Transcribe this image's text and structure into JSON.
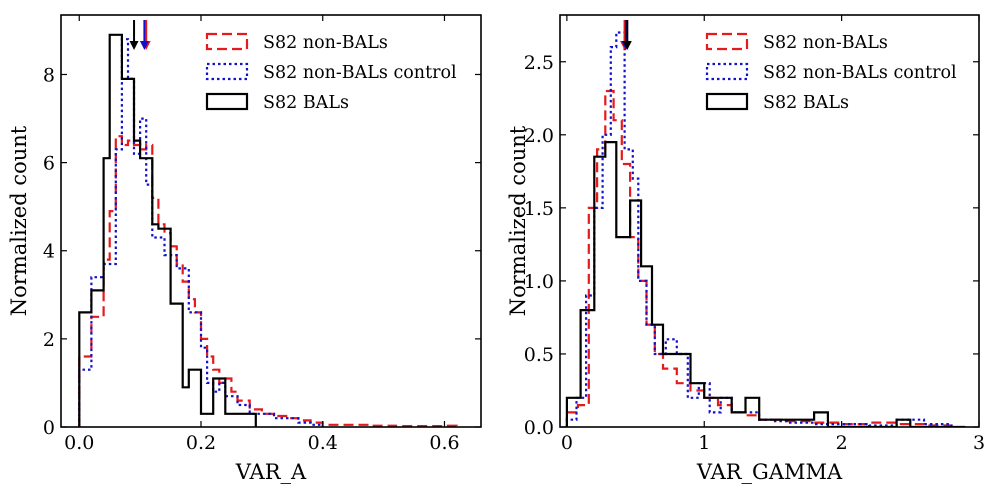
{
  "chart_data": [
    {
      "type": "histogram",
      "xlabel": "VAR_A",
      "ylabel": "Normalized count",
      "xlim": [
        -0.03,
        0.66
      ],
      "ylim": [
        0,
        9.35
      ],
      "xticks": [
        0.0,
        0.2,
        0.4,
        0.6
      ],
      "xtick_labels": [
        "0.0",
        "0.2",
        "0.4",
        "0.6"
      ],
      "yticks": [
        0,
        2,
        4,
        6,
        8
      ],
      "ytick_labels": [
        "0",
        "2",
        "4",
        "6",
        "8"
      ],
      "legend_position": "top-right",
      "series": [
        {
          "name": "S82 non-BALs",
          "color": "#e41a1c",
          "style": "dashed",
          "edges": [
            0.0,
            0.02,
            0.04,
            0.05,
            0.06,
            0.07,
            0.08,
            0.09,
            0.1,
            0.11,
            0.12,
            0.13,
            0.14,
            0.15,
            0.16,
            0.17,
            0.18,
            0.19,
            0.2,
            0.21,
            0.22,
            0.23,
            0.24,
            0.25,
            0.26,
            0.28,
            0.3,
            0.32,
            0.34,
            0.36,
            0.38,
            0.4,
            0.44,
            0.48,
            0.52,
            0.56,
            0.6,
            0.62
          ],
          "values": [
            1.6,
            2.5,
            3.8,
            4.9,
            6.6,
            6.4,
            6.5,
            6.4,
            6.3,
            6.4,
            5.2,
            4.6,
            4.4,
            4.1,
            3.7,
            3.3,
            2.9,
            2.6,
            2.0,
            1.6,
            1.3,
            1.0,
            1.1,
            0.8,
            0.6,
            0.4,
            0.3,
            0.25,
            0.2,
            0.15,
            0.1,
            0.05,
            0.05,
            0.03,
            0.02,
            0.02,
            0.03
          ]
        },
        {
          "name": "S82 non-BALs control",
          "color": "#1111cc",
          "style": "dotted",
          "edges": [
            0.0,
            0.02,
            0.04,
            0.06,
            0.07,
            0.08,
            0.09,
            0.1,
            0.11,
            0.12,
            0.14,
            0.16,
            0.17,
            0.18,
            0.2,
            0.21,
            0.22,
            0.23,
            0.24,
            0.26,
            0.28,
            0.3,
            0.32,
            0.34,
            0.36,
            0.38,
            0.4
          ],
          "values": [
            1.3,
            3.4,
            3.7,
            6.3,
            8.8,
            7.9,
            6.2,
            7.0,
            5.5,
            4.3,
            3.9,
            3.6,
            3.6,
            2.6,
            1.8,
            1.0,
            0.8,
            1.0,
            0.7,
            0.5,
            0.3,
            0.3,
            0.2,
            0.2,
            0.1,
            0.05
          ]
        },
        {
          "name": "S82 BALs",
          "color": "#000000",
          "style": "solid",
          "edges": [
            0.0,
            0.02,
            0.04,
            0.05,
            0.06,
            0.07,
            0.08,
            0.09,
            0.1,
            0.11,
            0.12,
            0.13,
            0.14,
            0.15,
            0.16,
            0.17,
            0.18,
            0.19,
            0.2,
            0.21,
            0.22,
            0.23,
            0.24,
            0.26,
            0.28,
            0.29
          ],
          "values": [
            2.6,
            3.1,
            6.1,
            8.9,
            8.9,
            7.9,
            7.9,
            6.5,
            6.1,
            6.1,
            4.6,
            4.5,
            4.5,
            2.8,
            2.8,
            0.9,
            1.3,
            1.3,
            0.3,
            0.3,
            1.1,
            1.1,
            0.3,
            0.3,
            0.3
          ]
        }
      ],
      "medians": [
        {
          "series": "S82 non-BALs",
          "x": 0.11,
          "color": "#e41a1c"
        },
        {
          "series": "S82 non-BALs control",
          "x": 0.107,
          "color": "#1111cc"
        },
        {
          "series": "S82 BALs",
          "x": 0.09,
          "color": "#000000"
        }
      ]
    },
    {
      "type": "histogram",
      "xlabel": "VAR_GAMMA",
      "ylabel": "Normalized count",
      "xlim": [
        -0.05,
        3.0
      ],
      "ylim": [
        0,
        2.82
      ],
      "xticks": [
        0,
        1,
        2,
        3
      ],
      "xtick_labels": [
        "0",
        "1",
        "2",
        "3"
      ],
      "yticks": [
        0.0,
        0.5,
        1.0,
        1.5,
        2.0,
        2.5
      ],
      "ytick_labels": [
        "0.0",
        "0.5",
        "1.0",
        "1.5",
        "2.0",
        "2.5"
      ],
      "legend_position": "top-right",
      "series": [
        {
          "name": "S82 non-BALs",
          "color": "#e41a1c",
          "style": "dashed",
          "edges": [
            0.0,
            0.08,
            0.16,
            0.22,
            0.28,
            0.34,
            0.4,
            0.46,
            0.52,
            0.58,
            0.64,
            0.7,
            0.8,
            0.9,
            1.0,
            1.1,
            1.2,
            1.3,
            1.4,
            1.5,
            1.6,
            1.8,
            2.0,
            2.2,
            2.4,
            2.6,
            2.8
          ],
          "values": [
            0.1,
            0.15,
            1.5,
            1.9,
            2.3,
            2.1,
            1.8,
            1.3,
            1.0,
            0.7,
            0.5,
            0.4,
            0.3,
            0.25,
            0.2,
            0.15,
            0.1,
            0.08,
            0.05,
            0.05,
            0.04,
            0.03,
            0.02,
            0.03,
            0.02,
            0.01
          ]
        },
        {
          "name": "S82 non-BALs control",
          "color": "#1111cc",
          "style": "dotted",
          "edges": [
            0.0,
            0.07,
            0.14,
            0.2,
            0.26,
            0.32,
            0.36,
            0.42,
            0.48,
            0.52,
            0.58,
            0.64,
            0.72,
            0.8,
            0.88,
            0.96,
            1.04,
            1.12,
            1.2,
            1.3,
            1.4,
            1.5,
            1.6,
            1.8,
            2.0,
            2.2,
            2.4,
            2.6,
            2.8
          ],
          "values": [
            0.05,
            0.2,
            0.9,
            1.5,
            2.0,
            2.6,
            2.7,
            1.9,
            1.7,
            1.0,
            0.7,
            0.5,
            0.6,
            0.5,
            0.2,
            0.3,
            0.1,
            0.2,
            0.1,
            0.1,
            0.05,
            0.04,
            0.03,
            0.02,
            0.02,
            0.01,
            0.05,
            0.02
          ]
        },
        {
          "name": "S82 BALs",
          "color": "#000000",
          "style": "solid",
          "edges": [
            0.0,
            0.1,
            0.2,
            0.28,
            0.36,
            0.46,
            0.54,
            0.62,
            0.7,
            0.8,
            0.9,
            1.0,
            1.1,
            1.2,
            1.3,
            1.4,
            1.5,
            1.6,
            1.7,
            1.8,
            1.9,
            2.0,
            2.4,
            2.5,
            2.6,
            2.9
          ],
          "values": [
            0.2,
            0.8,
            1.85,
            1.95,
            1.3,
            1.55,
            1.1,
            0.7,
            0.5,
            0.5,
            0.3,
            0.2,
            0.2,
            0.1,
            0.2,
            0.05,
            0.05,
            0.05,
            0.05,
            0.1,
            0.0,
            0.0,
            0.05,
            0.0,
            0.0
          ]
        }
      ],
      "medians": [
        {
          "series": "S82 non-BALs",
          "x": 0.42,
          "color": "#e41a1c"
        },
        {
          "series": "S82 non-BALs control",
          "x": 0.43,
          "color": "#1111cc"
        },
        {
          "series": "S82 BALs",
          "x": 0.44,
          "color": "#000000"
        }
      ]
    }
  ]
}
